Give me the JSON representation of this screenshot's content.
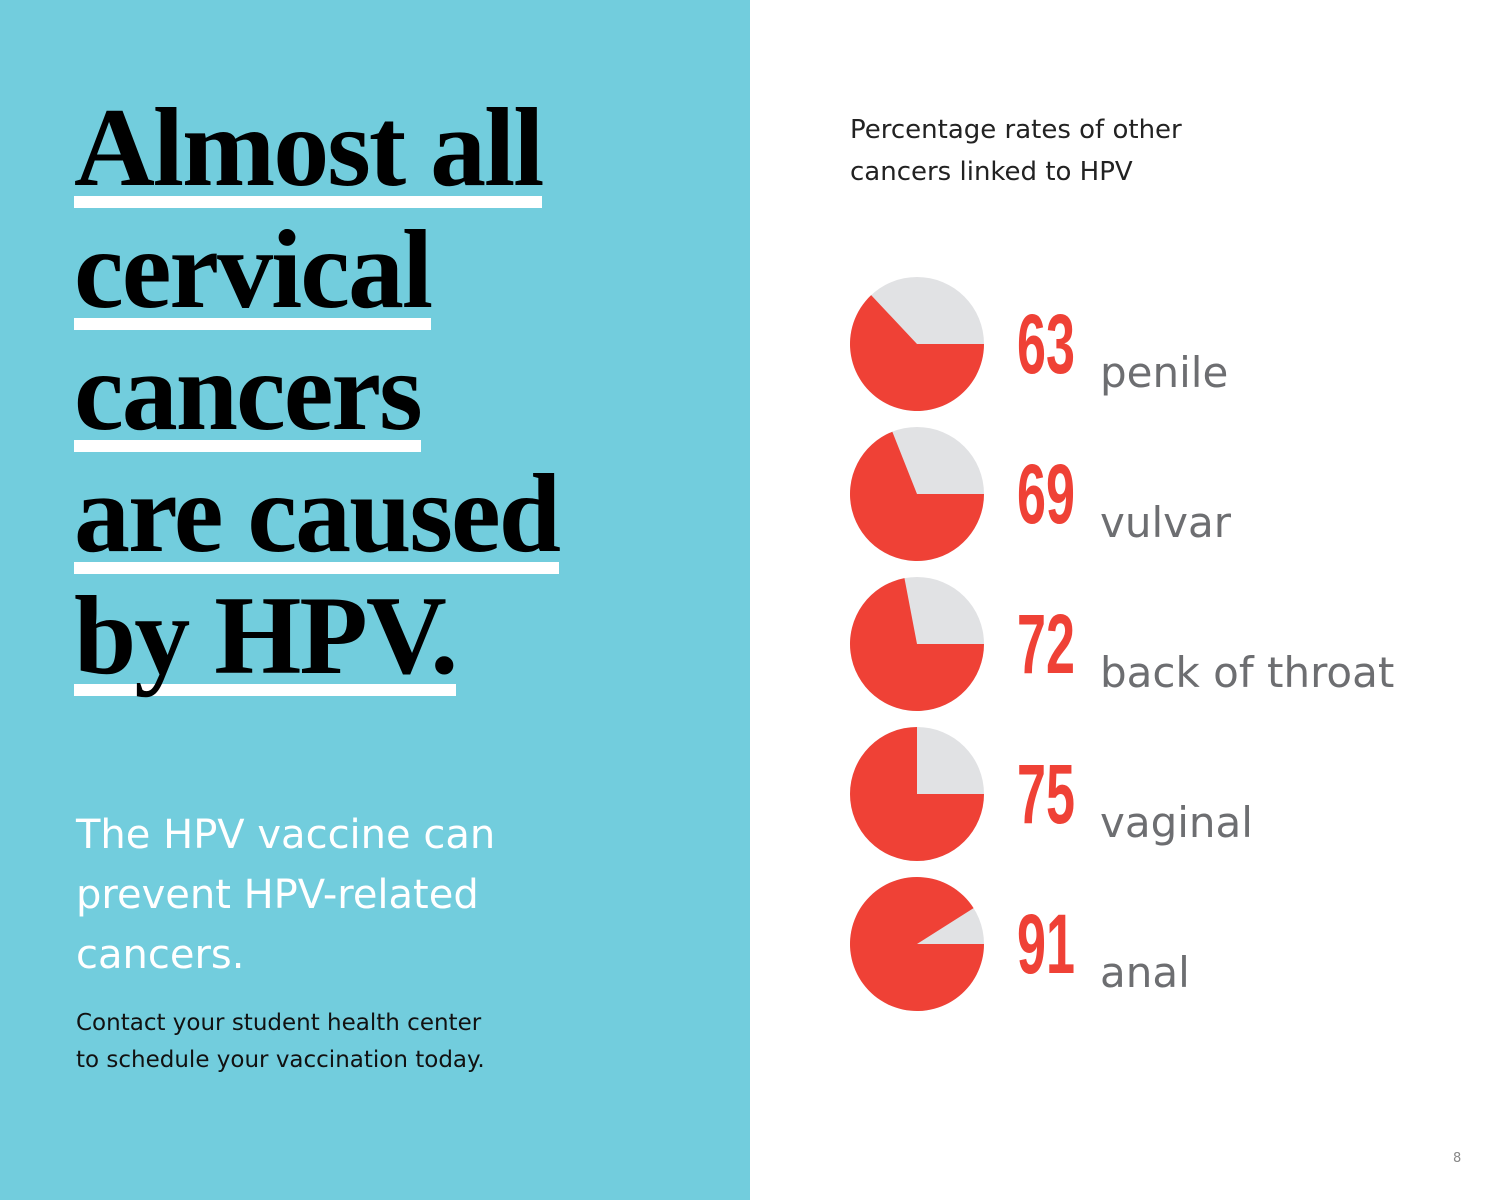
{
  "headline": {
    "lines": [
      "Almost all",
      "cervical",
      "cancers",
      "are caused",
      "by HPV."
    ]
  },
  "body": {
    "lead_lines": [
      "The HPV vaccine can",
      "prevent HPV-related",
      "cancers."
    ],
    "note_lines": [
      "Contact your student health center",
      "to schedule your vaccination today."
    ]
  },
  "chart_data": {
    "type": "pie",
    "title_lines": [
      "Percentage rates of other",
      "cancers linked to HPV"
    ],
    "categories": [
      "penile",
      "vulvar",
      "back of throat",
      "vaginal",
      "anal"
    ],
    "values": [
      63,
      69,
      72,
      75,
      91
    ],
    "color": "#ef4136",
    "rest_color": "#e1e2e4"
  },
  "page_number": 8
}
